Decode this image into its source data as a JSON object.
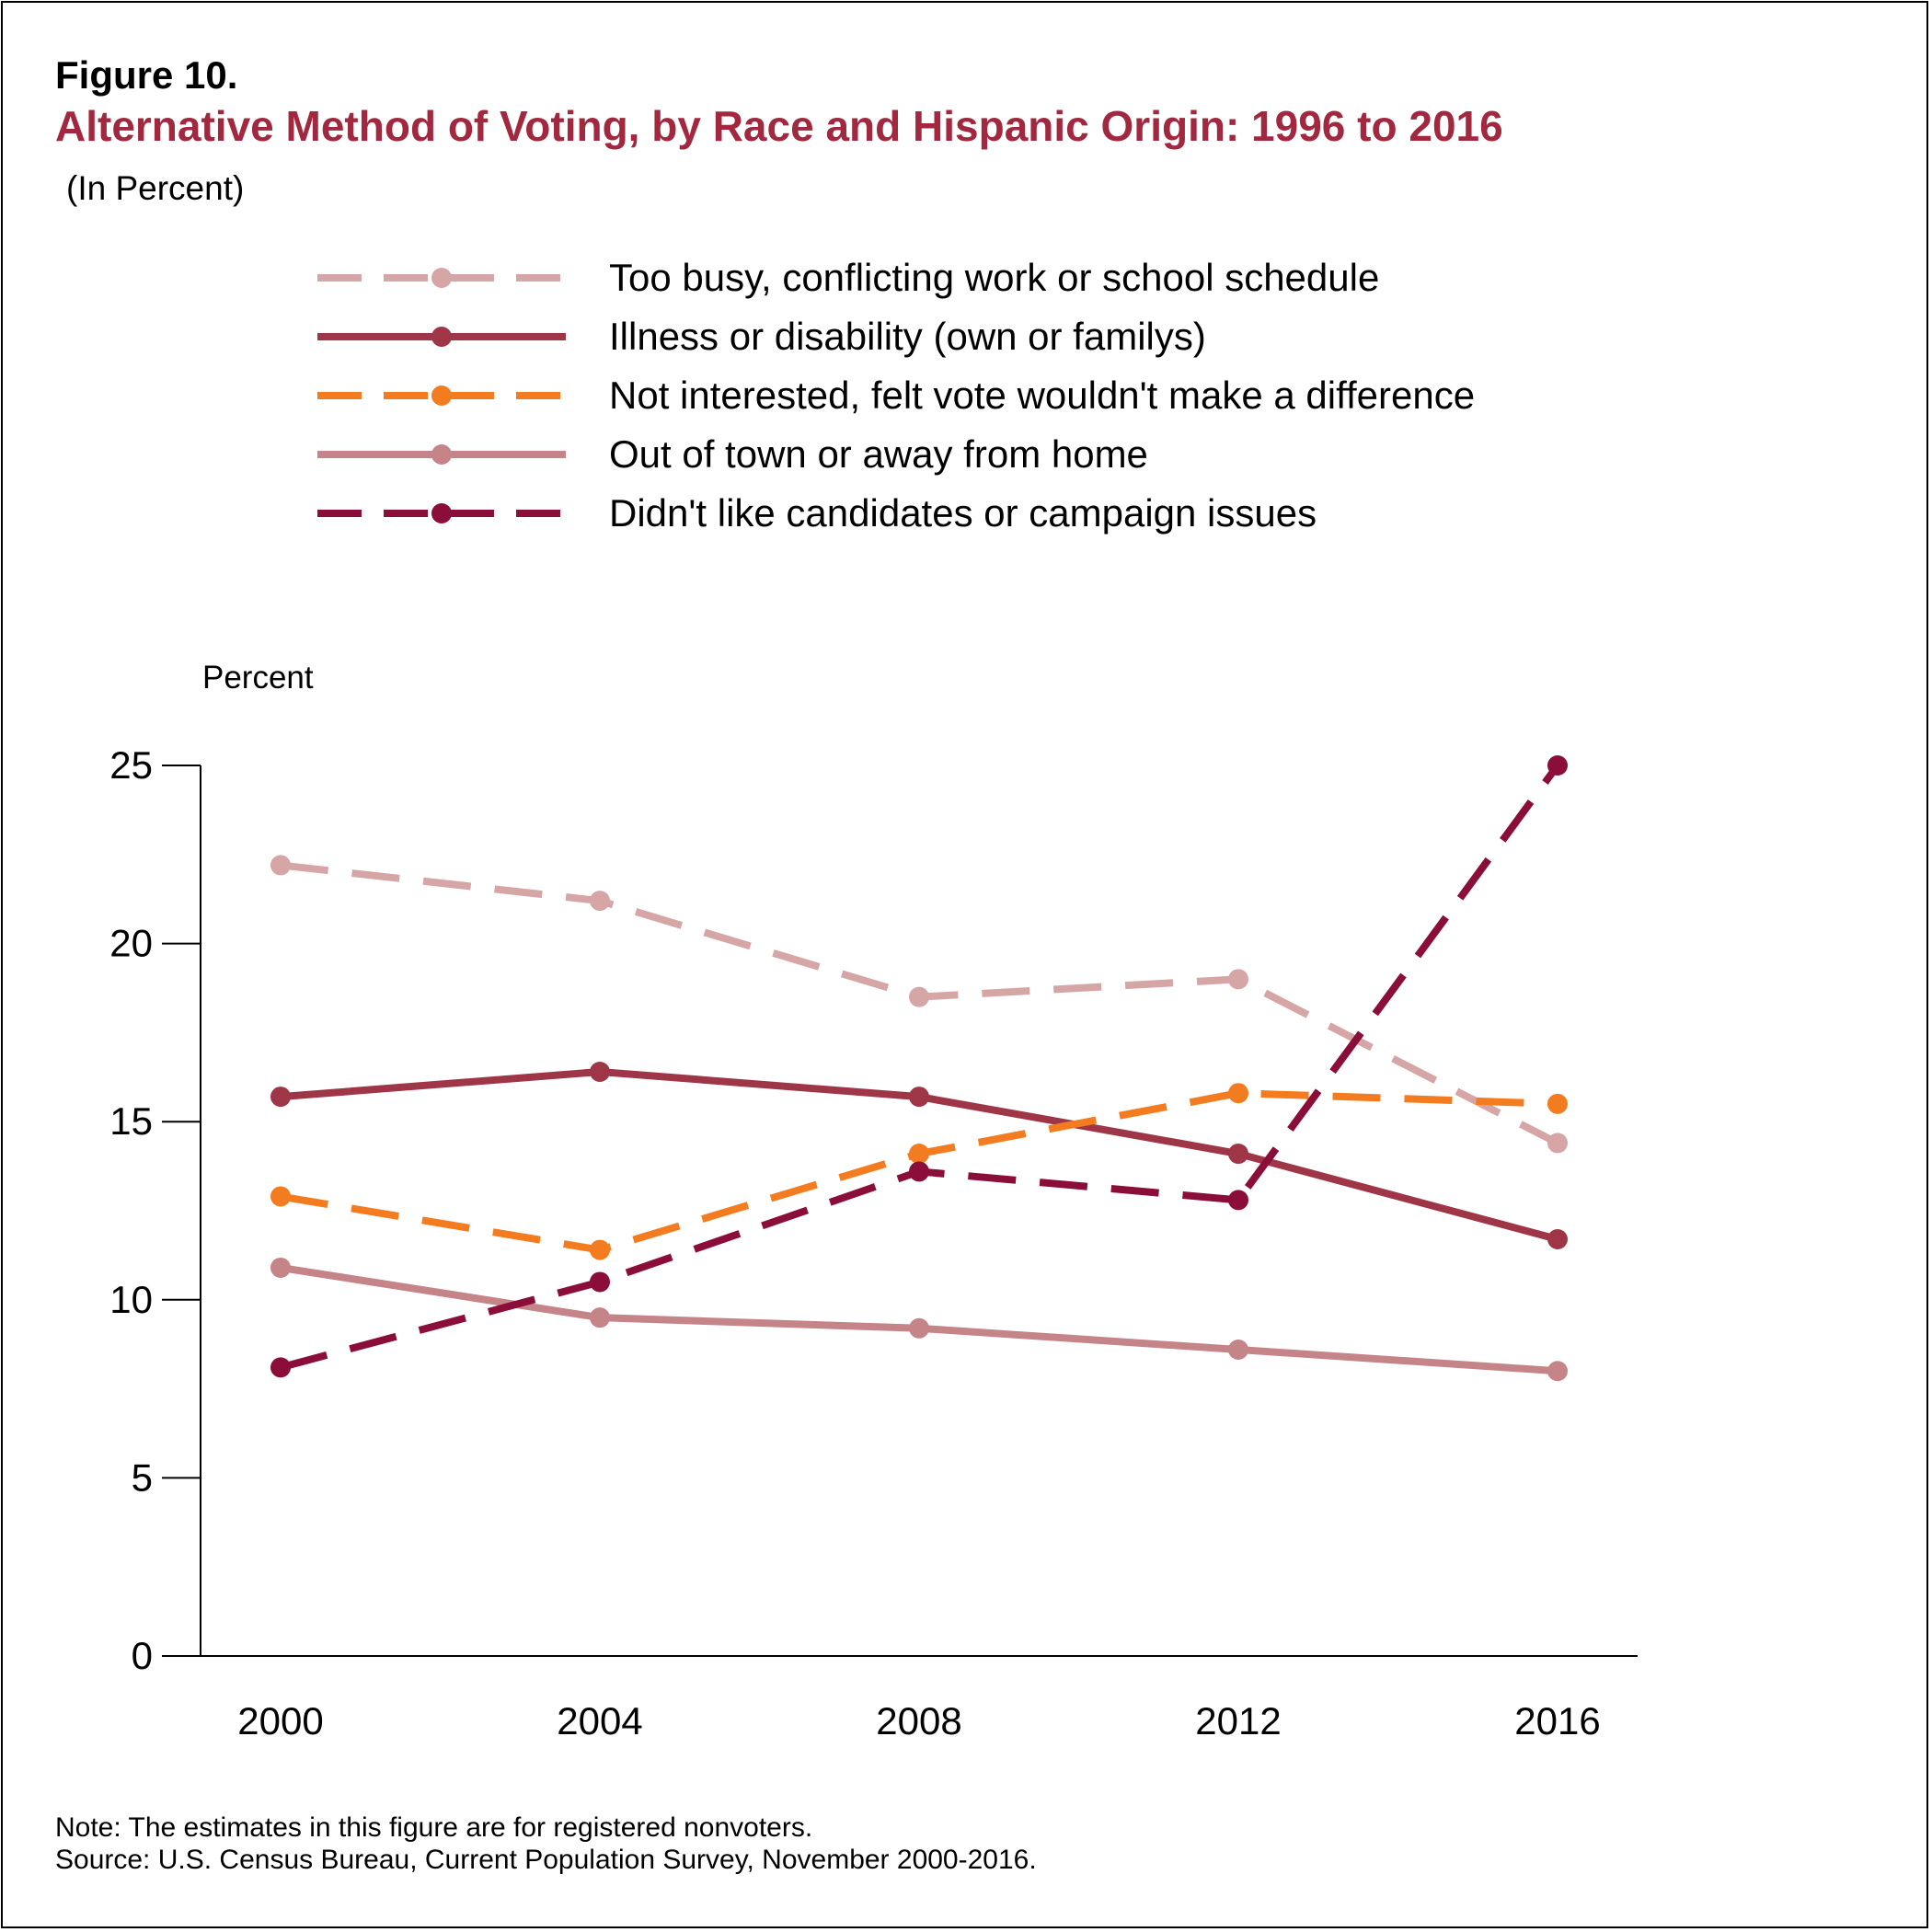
{
  "figure": {
    "label": "Figure 10.",
    "title": "Alternative Method of Voting, by Race and Hispanic Origin: 1996 to 2016",
    "subtitle": "(In Percent)",
    "note": "Note: The estimates in this figure are for registered nonvoters.",
    "source": "Source: U.S. Census Bureau, Current Population Survey, November 2000-2016."
  },
  "chart_data": {
    "type": "line",
    "title": "Alternative Method of Voting, by Race and Hispanic Origin: 1996 to 2016",
    "subtitle": "(In Percent)",
    "xlabel": "",
    "ylabel": "Percent",
    "categories": [
      "2000",
      "2004",
      "2008",
      "2012",
      "2016"
    ],
    "ylim": [
      0,
      25
    ],
    "yticks": [
      0,
      5,
      10,
      15,
      20,
      25
    ],
    "grid": false,
    "legend_position": "top",
    "series": [
      {
        "name": "Too busy, conflicting work or school schedule",
        "values": [
          22.2,
          21.2,
          18.5,
          19.0,
          14.4
        ],
        "color": "#d6a5a6",
        "dashed": true
      },
      {
        "name": "Illness or disability (own or familys)",
        "values": [
          15.7,
          16.4,
          15.7,
          14.1,
          11.7
        ],
        "color": "#9e3648",
        "dashed": false
      },
      {
        "name": "Not interested, felt vote wouldn't make a difference",
        "values": [
          12.9,
          11.4,
          14.1,
          15.8,
          15.5
        ],
        "color": "#f47c20",
        "dashed": true
      },
      {
        "name": "Out of town or away from home",
        "values": [
          10.9,
          9.5,
          9.2,
          8.6,
          8.0
        ],
        "color": "#c58487",
        "dashed": false
      },
      {
        "name": "Didn't like candidates or campaign issues",
        "values": [
          8.1,
          10.5,
          13.6,
          12.8,
          25.0
        ],
        "color": "#8b0d3a",
        "dashed": true
      }
    ]
  }
}
